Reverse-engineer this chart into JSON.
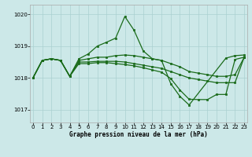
{
  "xlabel": "Graphe pression niveau de la mer (hPa)",
  "bg_color": "#cce8e8",
  "line_color": "#1a6b1a",
  "grid_color": "#aad0d0",
  "ylim": [
    1016.6,
    1020.3
  ],
  "xlim": [
    -0.3,
    23.3
  ],
  "yticks": [
    1017,
    1018,
    1019,
    1020
  ],
  "xticks": [
    0,
    1,
    2,
    3,
    4,
    5,
    6,
    7,
    8,
    9,
    10,
    11,
    12,
    13,
    14,
    15,
    16,
    17,
    18,
    19,
    20,
    21,
    22,
    23
  ],
  "s1_x": [
    0,
    1,
    2,
    3,
    4,
    5,
    6,
    7,
    8,
    9,
    10,
    11,
    12,
    13,
    14,
    15,
    16,
    17,
    21,
    22,
    23
  ],
  "s1_y": [
    1018.0,
    1018.55,
    1018.6,
    1018.55,
    1018.05,
    1018.6,
    1018.75,
    1019.0,
    1019.12,
    1019.25,
    1019.93,
    1019.5,
    1018.85,
    1018.6,
    1018.55,
    1017.82,
    1017.42,
    1017.15,
    1018.62,
    1018.7,
    1018.72
  ],
  "s2_x": [
    0,
    1,
    2,
    3,
    4,
    5,
    6,
    7,
    8,
    9,
    10,
    11,
    12,
    13,
    14,
    15,
    16,
    17,
    18,
    19,
    20,
    21,
    22,
    23
  ],
  "s2_y": [
    1018.0,
    1018.55,
    1018.6,
    1018.55,
    1018.05,
    1018.55,
    1018.6,
    1018.65,
    1018.65,
    1018.7,
    1018.72,
    1018.7,
    1018.65,
    1018.6,
    1018.55,
    1018.45,
    1018.35,
    1018.2,
    1018.15,
    1018.1,
    1018.05,
    1018.05,
    1018.1,
    1018.65
  ],
  "s3_x": [
    0,
    1,
    2,
    3,
    4,
    5,
    6,
    7,
    8,
    9,
    10,
    11,
    12,
    13,
    14,
    15,
    16,
    17,
    18,
    19,
    20,
    21,
    22,
    23
  ],
  "s3_y": [
    1018.0,
    1018.55,
    1018.6,
    1018.55,
    1018.05,
    1018.5,
    1018.5,
    1018.52,
    1018.52,
    1018.52,
    1018.5,
    1018.45,
    1018.4,
    1018.35,
    1018.3,
    1018.2,
    1018.1,
    1018.0,
    1017.95,
    1017.9,
    1017.85,
    1017.85,
    1017.85,
    1018.65
  ],
  "s4_x": [
    0,
    1,
    2,
    3,
    4,
    5,
    6,
    7,
    8,
    9,
    10,
    11,
    12,
    13,
    14,
    15,
    16,
    17,
    18,
    19,
    20,
    21,
    22,
    23
  ],
  "s4_y": [
    1018.0,
    1018.55,
    1018.6,
    1018.55,
    1018.05,
    1018.45,
    1018.45,
    1018.48,
    1018.48,
    1018.45,
    1018.42,
    1018.38,
    1018.32,
    1018.25,
    1018.18,
    1017.98,
    1017.62,
    1017.33,
    1017.32,
    1017.32,
    1017.48,
    1017.48,
    1018.58,
    1018.65
  ],
  "lw": 0.9,
  "ms": 1.8,
  "tick_labelsize": 5,
  "xlabel_fontsize": 5.5
}
